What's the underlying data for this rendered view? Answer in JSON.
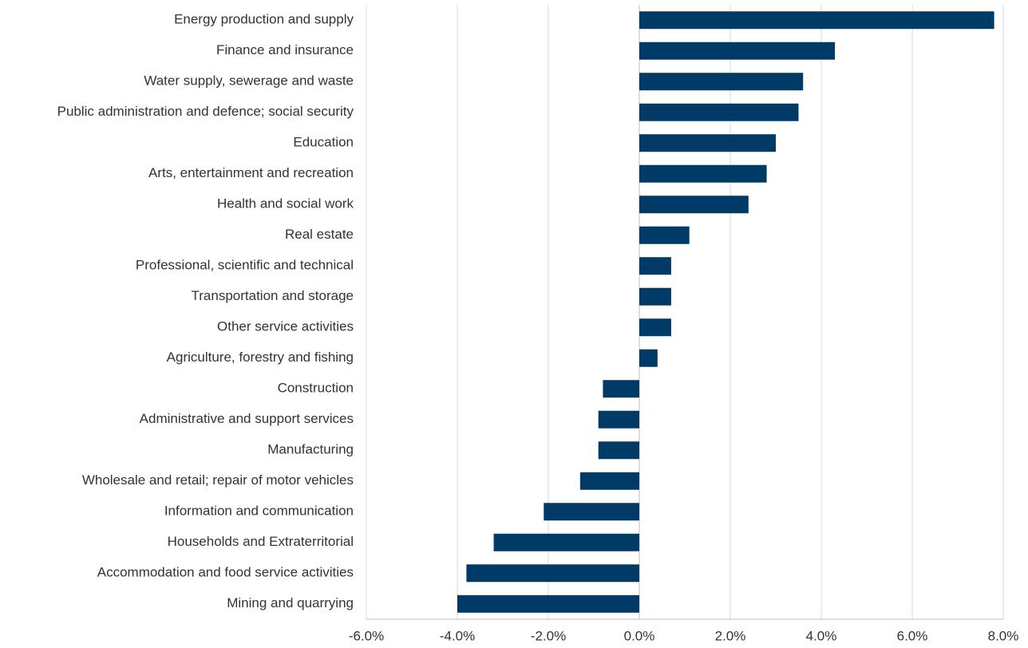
{
  "chart_data": {
    "type": "barh",
    "categories": [
      "Energy production and supply",
      "Finance and insurance",
      "Water supply, sewerage and waste",
      "Public administration and defence; social security",
      "Education",
      "Arts, entertainment and recreation",
      "Health and social work",
      "Real estate",
      "Professional, scientific and technical",
      "Transportation and storage",
      "Other service activities",
      "Agriculture, forestry and fishing",
      "Construction",
      "Administrative and support services",
      "Manufacturing",
      "Wholesale and retail; repair of motor vehicles",
      "Information and communication",
      "Households and Extraterritorial",
      "Accommodation and food service activities",
      "Mining and quarrying"
    ],
    "values": [
      7.8,
      4.3,
      3.6,
      3.5,
      3.0,
      2.8,
      2.4,
      1.1,
      0.7,
      0.7,
      0.7,
      0.4,
      -0.8,
      -0.9,
      -0.9,
      -1.3,
      -2.1,
      -3.2,
      -3.8,
      -4.0
    ],
    "color": "#003a66",
    "xlim": [
      -6,
      8
    ],
    "xticks": [
      {
        "value": -6,
        "label": "-6.0%"
      },
      {
        "value": -4,
        "label": "-4.0%"
      },
      {
        "value": -2,
        "label": "-2.0%"
      },
      {
        "value": 0,
        "label": "0.0%"
      },
      {
        "value": 2,
        "label": "2.0%"
      },
      {
        "value": 4,
        "label": "4.0%"
      },
      {
        "value": 6,
        "label": "6.0%"
      },
      {
        "value": 8,
        "label": "8.0%"
      }
    ],
    "grid": true
  }
}
